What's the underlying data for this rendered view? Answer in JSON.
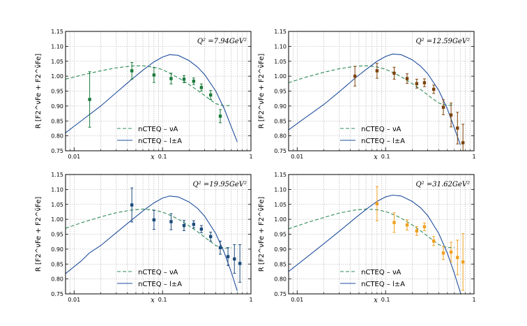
{
  "chart_data": [
    {
      "type": "line",
      "annotation": "Q² =7.94GeV²",
      "xlabel": "x",
      "ylabel": "R [F2^νFe + F2^ν̄Fe]",
      "xscale": "log",
      "xlim": [
        0.008,
        1
      ],
      "ylim": [
        0.75,
        1.15
      ],
      "grid": true,
      "legend_position": "lower-left",
      "series": [
        {
          "name": "nCTEQ – νA",
          "style": "dashed",
          "color": "#2e8b57",
          "x": [
            0.008,
            0.012,
            0.02,
            0.03,
            0.045,
            0.06,
            0.08,
            0.1,
            0.13,
            0.16,
            0.2,
            0.25,
            0.3,
            0.35,
            0.4,
            0.5,
            0.6
          ],
          "y": [
            0.99,
            1.003,
            1.018,
            1.028,
            1.034,
            1.035,
            1.03,
            1.022,
            1.005,
            0.99,
            0.972,
            0.952,
            0.935,
            0.92,
            0.908,
            0.9,
            0.902
          ]
        },
        {
          "name": "nCTEQ – l±A",
          "style": "solid",
          "color": "#1f4e9c",
          "x": [
            0.008,
            0.012,
            0.02,
            0.03,
            0.045,
            0.06,
            0.08,
            0.1,
            0.12,
            0.15,
            0.2,
            0.25,
            0.3,
            0.4,
            0.5,
            0.6,
            0.7
          ],
          "y": [
            0.81,
            0.85,
            0.9,
            0.945,
            0.99,
            1.02,
            1.048,
            1.064,
            1.072,
            1.07,
            1.052,
            1.03,
            1.005,
            0.95,
            0.89,
            0.83,
            0.78
          ]
        }
      ],
      "points": {
        "color": "#1a7a3a",
        "x": [
          0.015,
          0.045,
          0.08,
          0.125,
          0.175,
          0.225,
          0.275,
          0.35,
          0.45
        ],
        "y": [
          0.922,
          1.018,
          1.004,
          0.992,
          0.99,
          0.983,
          0.962,
          0.937,
          0.866
        ],
        "err": [
          0.093,
          0.028,
          0.025,
          0.018,
          0.012,
          0.011,
          0.012,
          0.015,
          0.022
        ]
      }
    },
    {
      "type": "line",
      "annotation": "Q² =12.59GeV²",
      "xlabel": "x",
      "ylabel": "R [F2^νFe + F2^ν̄Fe]",
      "xscale": "log",
      "xlim": [
        0.008,
        1
      ],
      "ylim": [
        0.75,
        1.15
      ],
      "grid": true,
      "legend_position": "lower-left",
      "series": [
        {
          "name": "nCTEQ – νA",
          "style": "dashed",
          "color": "#2e8b57",
          "x": [
            0.008,
            0.012,
            0.02,
            0.03,
            0.045,
            0.06,
            0.08,
            0.1,
            0.13,
            0.16,
            0.2,
            0.25,
            0.3,
            0.35,
            0.4,
            0.5,
            0.6
          ],
          "y": [
            0.978,
            0.995,
            1.013,
            1.025,
            1.033,
            1.035,
            1.031,
            1.023,
            1.008,
            0.993,
            0.975,
            0.955,
            0.937,
            0.922,
            0.91,
            0.902,
            0.904
          ]
        },
        {
          "name": "nCTEQ – l±A",
          "style": "solid",
          "color": "#1f4e9c",
          "x": [
            0.008,
            0.012,
            0.02,
            0.03,
            0.045,
            0.06,
            0.08,
            0.1,
            0.12,
            0.15,
            0.2,
            0.25,
            0.3,
            0.4,
            0.5,
            0.6,
            0.7
          ],
          "y": [
            0.82,
            0.858,
            0.905,
            0.948,
            0.993,
            1.022,
            1.05,
            1.066,
            1.074,
            1.072,
            1.055,
            1.033,
            1.008,
            0.952,
            0.89,
            0.826,
            0.77
          ]
        }
      ],
      "points": {
        "color": "#7a4208",
        "x": [
          0.045,
          0.08,
          0.125,
          0.175,
          0.225,
          0.275,
          0.35,
          0.45,
          0.55,
          0.65,
          0.75
        ],
        "y": [
          1.0,
          1.018,
          1.01,
          0.992,
          0.975,
          0.978,
          0.956,
          0.896,
          0.87,
          0.826,
          0.777
        ],
        "err": [
          0.033,
          0.025,
          0.02,
          0.016,
          0.015,
          0.013,
          0.014,
          0.025,
          0.04,
          0.053,
          0.062
        ]
      }
    },
    {
      "type": "line",
      "annotation": "Q² =19.95GeV²",
      "xlabel": "x",
      "ylabel": "R [F2^νFe + F2^ν̄Fe]",
      "xscale": "log",
      "xlim": [
        0.008,
        1
      ],
      "ylim": [
        0.75,
        1.15
      ],
      "grid": true,
      "legend_position": "lower-left",
      "series": [
        {
          "name": "nCTEQ – νA",
          "style": "dashed",
          "color": "#2e8b57",
          "x": [
            0.008,
            0.012,
            0.02,
            0.03,
            0.045,
            0.06,
            0.08,
            0.1,
            0.13,
            0.16,
            0.2,
            0.25,
            0.3,
            0.35,
            0.4,
            0.5,
            0.6
          ],
          "y": [
            0.97,
            0.988,
            1.008,
            1.022,
            1.031,
            1.034,
            1.031,
            1.024,
            1.01,
            0.996,
            0.978,
            0.958,
            0.94,
            0.925,
            0.912,
            0.903,
            0.905
          ]
        },
        {
          "name": "nCTEQ – l±A",
          "style": "solid",
          "color": "#1f4e9c",
          "x": [
            0.008,
            0.012,
            0.015,
            0.02,
            0.03,
            0.045,
            0.06,
            0.08,
            0.1,
            0.12,
            0.15,
            0.2,
            0.25,
            0.3,
            0.4,
            0.5,
            0.6,
            0.7
          ],
          "y": [
            0.818,
            0.86,
            0.888,
            0.912,
            0.955,
            0.998,
            1.028,
            1.055,
            1.071,
            1.078,
            1.075,
            1.058,
            1.036,
            1.01,
            0.952,
            0.888,
            0.822,
            0.76
          ]
        }
      ],
      "points": {
        "color": "#1b4a7a",
        "x": [
          0.045,
          0.08,
          0.125,
          0.175,
          0.225,
          0.275,
          0.35,
          0.45,
          0.55,
          0.65,
          0.75
        ],
        "y": [
          1.048,
          0.998,
          0.992,
          0.979,
          0.983,
          0.967,
          0.942,
          0.905,
          0.875,
          0.867,
          0.852
        ],
        "err": [
          0.057,
          0.032,
          0.027,
          0.017,
          0.012,
          0.012,
          0.015,
          0.022,
          0.03,
          0.048,
          0.063
        ]
      }
    },
    {
      "type": "line",
      "annotation": "Q² =31.62GeV²",
      "xlabel": "x",
      "ylabel": "R [F2^νFe + F2^ν̄Fe]",
      "xscale": "log",
      "xlim": [
        0.008,
        1
      ],
      "ylim": [
        0.75,
        1.15
      ],
      "grid": true,
      "legend_position": "lower-left",
      "series": [
        {
          "name": "nCTEQ – νA",
          "style": "dashed",
          "color": "#2e8b57",
          "x": [
            0.008,
            0.012,
            0.02,
            0.03,
            0.045,
            0.06,
            0.08,
            0.1,
            0.13,
            0.16,
            0.2,
            0.25,
            0.3,
            0.35,
            0.4,
            0.5,
            0.6
          ],
          "y": [
            0.968,
            0.986,
            1.006,
            1.021,
            1.031,
            1.034,
            1.032,
            1.026,
            1.013,
            0.999,
            0.981,
            0.961,
            0.943,
            0.928,
            0.915,
            0.905,
            0.906
          ]
        },
        {
          "name": "nCTEQ – l±A",
          "style": "solid",
          "color": "#1f4e9c",
          "x": [
            0.008,
            0.012,
            0.02,
            0.03,
            0.045,
            0.06,
            0.08,
            0.1,
            0.12,
            0.15,
            0.2,
            0.25,
            0.3,
            0.4,
            0.5,
            0.6,
            0.7,
            0.78
          ],
          "y": [
            0.825,
            0.866,
            0.918,
            0.96,
            1.003,
            1.033,
            1.06,
            1.075,
            1.081,
            1.078,
            1.06,
            1.038,
            1.012,
            0.952,
            0.886,
            0.818,
            0.755,
            0.72
          ]
        }
      ],
      "points": {
        "color": "#f0a020",
        "x": [
          0.08,
          0.125,
          0.175,
          0.225,
          0.275,
          0.35,
          0.45,
          0.55,
          0.65,
          0.75
        ],
        "y": [
          1.052,
          0.989,
          0.981,
          0.961,
          0.975,
          0.927,
          0.887,
          0.89,
          0.872,
          0.857
        ],
        "err": [
          0.057,
          0.033,
          0.017,
          0.015,
          0.013,
          0.015,
          0.022,
          0.033,
          0.058,
          0.095
        ]
      }
    }
  ],
  "axes": {
    "y_ticks": [
      "0.75",
      "0.80",
      "0.85",
      "0.90",
      "0.95",
      "1.00",
      "1.05",
      "1.10",
      "1.15"
    ],
    "x_ticks": [
      "0.01",
      "0.1",
      "1"
    ]
  }
}
